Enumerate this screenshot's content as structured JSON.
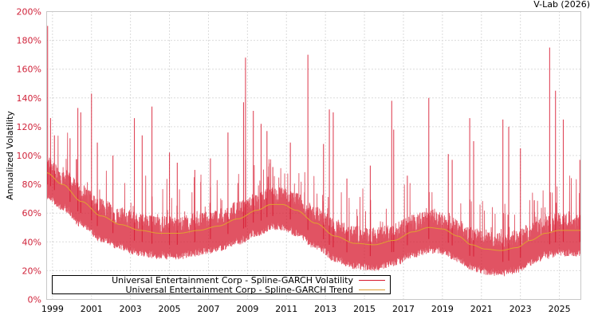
{
  "header": {
    "credit": "V-Lab (2026)"
  },
  "colors": {
    "volatility": "#d7192f",
    "trend": "#e0a030",
    "ytick": "#d0233a",
    "grid": "#b8b8b8",
    "frame": "#c8c8c8"
  },
  "legend": {
    "items": [
      {
        "label": "Universal Entertainment Corp - Spline-GARCH Volatility",
        "color": "#d7192f"
      },
      {
        "label": "Universal Entertainment Corp - Spline-GARCH Trend",
        "color": "#e0a030"
      }
    ]
  },
  "chart_data": {
    "type": "line",
    "title": "",
    "xlabel": "",
    "ylabel": "Annualized Volatility",
    "ylim": [
      0,
      200
    ],
    "xlim": [
      1998.7,
      2026.1
    ],
    "grid": true,
    "legend_position": "bottom-left inside",
    "y_ticks": [
      "0%",
      "20%",
      "40%",
      "60%",
      "80%",
      "100%",
      "120%",
      "140%",
      "160%",
      "180%",
      "200%"
    ],
    "x_ticks": [
      "1999",
      "2001",
      "2003",
      "2005",
      "2007",
      "2009",
      "2011",
      "2013",
      "2015",
      "2017",
      "2019",
      "2021",
      "2023",
      "2025"
    ],
    "series": [
      {
        "name": "Universal Entertainment Corp - Spline-GARCH Trend",
        "x": [
          1998.7,
          1999.5,
          2000.5,
          2001.5,
          2002.5,
          2003.5,
          2004.5,
          2005.5,
          2006.5,
          2007.5,
          2008.5,
          2009.5,
          2010.2,
          2010.8,
          2011.5,
          2012.5,
          2013.5,
          2014.5,
          2015.5,
          2016.5,
          2017.5,
          2018.3,
          2019.0,
          2019.8,
          2020.5,
          2021.2,
          2022.0,
          2022.8,
          2023.5,
          2024.3,
          2025.0,
          2026.1
        ],
        "values": [
          88,
          80,
          68,
          58,
          52,
          48,
          46,
          46,
          48,
          51,
          56,
          62,
          66,
          66,
          62,
          53,
          44,
          39,
          38,
          41,
          47,
          50,
          49,
          44,
          38,
          35,
          34,
          36,
          41,
          46,
          48,
          48
        ]
      },
      {
        "name": "Universal Entertainment Corp - Spline-GARCH Volatility",
        "baseline_offset_below_trend": 8,
        "spikes": [
          {
            "x": 1998.75,
            "y": 190
          },
          {
            "x": 1998.9,
            "y": 126
          },
          {
            "x": 1999.1,
            "y": 114
          },
          {
            "x": 1999.9,
            "y": 112
          },
          {
            "x": 2000.3,
            "y": 133
          },
          {
            "x": 2000.45,
            "y": 130
          },
          {
            "x": 2001.0,
            "y": 143
          },
          {
            "x": 2001.3,
            "y": 109
          },
          {
            "x": 2002.1,
            "y": 100
          },
          {
            "x": 2003.2,
            "y": 126
          },
          {
            "x": 2003.6,
            "y": 114
          },
          {
            "x": 2004.1,
            "y": 134
          },
          {
            "x": 2005.0,
            "y": 102
          },
          {
            "x": 2005.4,
            "y": 95
          },
          {
            "x": 2006.3,
            "y": 90
          },
          {
            "x": 2007.1,
            "y": 98
          },
          {
            "x": 2008.0,
            "y": 116
          },
          {
            "x": 2008.8,
            "y": 137
          },
          {
            "x": 2008.9,
            "y": 168
          },
          {
            "x": 2009.3,
            "y": 131
          },
          {
            "x": 2009.7,
            "y": 122
          },
          {
            "x": 2010.0,
            "y": 117
          },
          {
            "x": 2010.3,
            "y": 92
          },
          {
            "x": 2011.2,
            "y": 109
          },
          {
            "x": 2012.1,
            "y": 170
          },
          {
            "x": 2012.9,
            "y": 108
          },
          {
            "x": 2013.2,
            "y": 132
          },
          {
            "x": 2013.4,
            "y": 130
          },
          {
            "x": 2014.1,
            "y": 84
          },
          {
            "x": 2015.3,
            "y": 93
          },
          {
            "x": 2016.4,
            "y": 138
          },
          {
            "x": 2016.5,
            "y": 118
          },
          {
            "x": 2017.2,
            "y": 86
          },
          {
            "x": 2018.3,
            "y": 140
          },
          {
            "x": 2019.3,
            "y": 101
          },
          {
            "x": 2019.5,
            "y": 97
          },
          {
            "x": 2020.4,
            "y": 126
          },
          {
            "x": 2020.6,
            "y": 110
          },
          {
            "x": 2022.1,
            "y": 125
          },
          {
            "x": 2022.4,
            "y": 120
          },
          {
            "x": 2023.0,
            "y": 105
          },
          {
            "x": 2024.5,
            "y": 175
          },
          {
            "x": 2024.8,
            "y": 145
          },
          {
            "x": 2025.2,
            "y": 125
          },
          {
            "x": 2026.05,
            "y": 97
          }
        ]
      }
    ]
  }
}
